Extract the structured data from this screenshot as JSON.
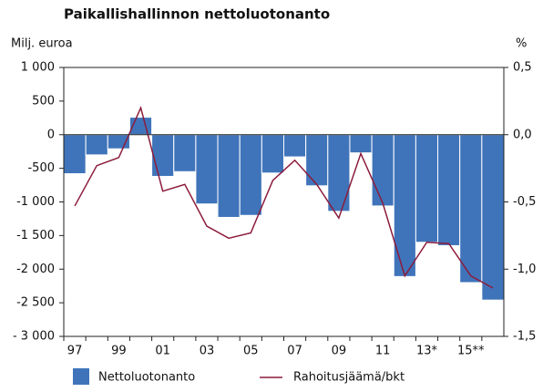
{
  "chart_data": {
    "type": "bar-line",
    "title": "Paikallishallinnon nettoluotonanto",
    "y_label": "Milj. euroa",
    "y2_label": "%",
    "categories": [
      "97",
      null,
      "99",
      null,
      "01",
      null,
      "03",
      null,
      "05",
      null,
      "07",
      null,
      "09",
      null,
      "11",
      null,
      "13*",
      null,
      "15**",
      null
    ],
    "series": [
      {
        "name": "Nettoluotonanto",
        "type": "bar",
        "color": "#3f74ba",
        "values": [
          -580,
          -300,
          -210,
          260,
          -620,
          -550,
          -1030,
          -1230,
          -1200,
          -570,
          -330,
          -760,
          -1140,
          -270,
          -1060,
          -2110,
          -1600,
          -1650,
          -2200,
          -2460
        ]
      },
      {
        "name": "Rahoitusjäämä/bkt",
        "type": "line",
        "axis": "y2",
        "color": "#8c1c3c",
        "values": [
          -0.53,
          -0.23,
          -0.17,
          0.2,
          -0.42,
          -0.37,
          -0.68,
          -0.77,
          -0.73,
          -0.34,
          -0.19,
          -0.37,
          -0.62,
          -0.14,
          -0.51,
          -1.05,
          -0.8,
          -0.81,
          -1.05,
          -1.14
        ]
      }
    ],
    "ylim": [
      -3000,
      1000
    ],
    "yticks": [
      {
        "value": 1000,
        "label": "1 000"
      },
      500,
      0,
      -500,
      {
        "value": -1000,
        "label": "-1 000"
      },
      {
        "value": -1500,
        "label": "-1 500"
      },
      {
        "value": -2000,
        "label": "-2 000"
      },
      {
        "value": -2500,
        "label": "-2 500"
      },
      {
        "value": -3000,
        "label": "- 3 000"
      }
    ],
    "y2lim": [
      -1.5,
      0.5
    ],
    "y2ticks": [
      {
        "value": 0.5,
        "label": "0,5"
      },
      {
        "value": 0,
        "label": "0,0"
      },
      {
        "value": -0.5,
        "label": "-0,5"
      },
      {
        "value": -1,
        "label": "-1,0"
      },
      {
        "value": -1.5,
        "label": "-1,5"
      }
    ],
    "grid": false
  }
}
